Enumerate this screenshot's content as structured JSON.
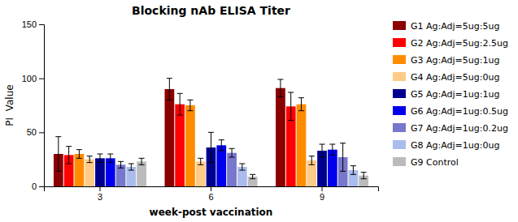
{
  "chart_data": {
    "type": "bar",
    "title": "Blocking nAb ELISA Titer",
    "xlabel": "week-post vaccination",
    "ylabel": "PI  Value",
    "categories": [
      "3",
      "6",
      "9"
    ],
    "series": [
      {
        "name": "G1 Ag:Adj=5ug:5ug",
        "color": "#8B0000",
        "values": [
          30,
          90,
          91
        ],
        "errors": [
          16,
          10,
          8
        ]
      },
      {
        "name": "G2 Ag:Adj=5ug:2.5ug",
        "color": "#FF0000",
        "values": [
          29,
          76,
          74
        ],
        "errors": [
          8,
          10,
          13
        ]
      },
      {
        "name": "G3 Ag:Adj=5ug:1ug",
        "color": "#FF8C00",
        "values": [
          30,
          75,
          76
        ],
        "errors": [
          4,
          5,
          6
        ]
      },
      {
        "name": "G4 Ag:Adj=5ug:0ug",
        "color": "#FFCC88",
        "values": [
          25,
          23,
          24
        ],
        "errors": [
          3,
          3,
          4
        ]
      },
      {
        "name": "G5 Ag:Adj=1ug:1ug",
        "color": "#000090",
        "values": [
          26,
          36,
          33
        ],
        "errors": [
          4,
          14,
          6
        ]
      },
      {
        "name": "G6 Ag:Adj=1ug:0.5ug",
        "color": "#0000EE",
        "values": [
          26,
          38,
          34
        ],
        "errors": [
          4,
          5,
          5
        ]
      },
      {
        "name": "G7 Ag:Adj=1ug:0.2ug",
        "color": "#7777CC",
        "values": [
          20,
          31,
          27
        ],
        "errors": [
          3,
          4,
          13
        ]
      },
      {
        "name": "G8 Ag:Adj=1ug:0ug",
        "color": "#AABBEE",
        "values": [
          18,
          18,
          15
        ],
        "errors": [
          3,
          3,
          4
        ]
      },
      {
        "name": "G9 Control",
        "color": "#BBBBBB",
        "values": [
          23,
          9,
          10
        ],
        "errors": [
          3,
          2,
          3
        ]
      }
    ],
    "ylim": [
      0,
      150
    ],
    "yticks": [
      0,
      50,
      100,
      150
    ],
    "grid": false,
    "legend": "right"
  }
}
